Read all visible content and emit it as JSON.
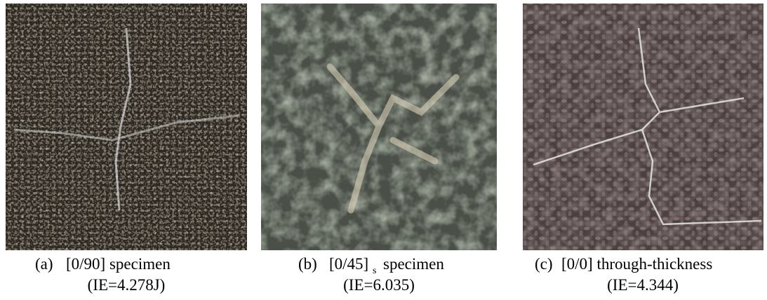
{
  "figure": {
    "panels": [
      {
        "label": "(a)",
        "caption": "[0/90] specimen",
        "impact_energy": "(IE=4.278J)"
      },
      {
        "label": "(b)",
        "caption": "[0/45]",
        "subscript": "s",
        "caption_suffix": "specimen",
        "impact_energy": "(IE=6.035)"
      },
      {
        "label": "(c)",
        "caption": "[0/0] through-thickness",
        "impact_energy": "(IE=4.344)"
      }
    ]
  }
}
